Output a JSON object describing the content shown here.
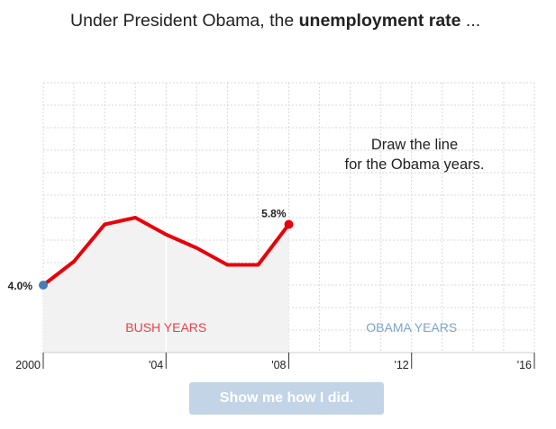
{
  "headline": {
    "prefix": "Under President Obama, the ",
    "bold": "unemployment rate",
    "suffix": " ..."
  },
  "prompt": {
    "line1": "Draw the line",
    "line2": "for the Obama years."
  },
  "button": {
    "label": "Show me how I did."
  },
  "colors": {
    "line": "#e8000b",
    "start_dot": "#4a7db5",
    "shade": "#f2f2f2",
    "bush_label": "#e8414a",
    "obama_label": "#7fa6c8",
    "button_bg": "#c2d4e6"
  },
  "chart_data": {
    "type": "line",
    "x": [
      2000,
      2001,
      2002,
      2003,
      2004,
      2005,
      2006,
      2007,
      2008
    ],
    "values": [
      4.0,
      4.7,
      5.8,
      6.0,
      5.5,
      5.1,
      4.6,
      4.6,
      5.8
    ],
    "xlim": [
      2000,
      2016
    ],
    "ylim": [
      2,
      10
    ],
    "xticks": [
      {
        "x": 2000,
        "label": "2000"
      },
      {
        "x": 2004,
        "label": "'04"
      },
      {
        "x": 2008,
        "label": "'08"
      },
      {
        "x": 2012,
        "label": "'12"
      },
      {
        "x": 2016,
        "label": "'16"
      }
    ],
    "start_label": "4.0%",
    "end_label": "5.8%",
    "regions": [
      {
        "name": "BUSH YEARS",
        "from": 2000,
        "to": 2008
      },
      {
        "name": "OBAMA YEARS",
        "from": 2008,
        "to": 2016
      }
    ],
    "grid": true
  }
}
